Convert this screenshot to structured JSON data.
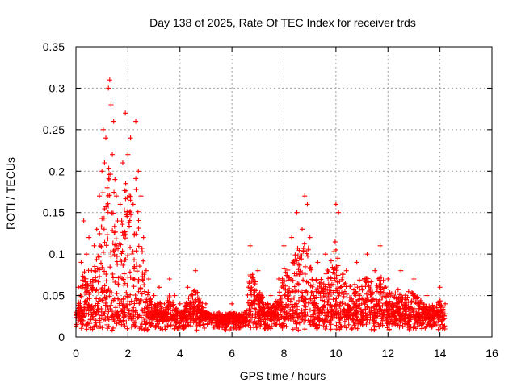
{
  "chart_data": {
    "type": "scatter",
    "title": "Day 138 of 2025, Rate Of TEC Index for receiver trds",
    "xlabel": "GPS time / hours",
    "ylabel": "ROTI / TECUs",
    "xlim": [
      0,
      16
    ],
    "ylim": [
      0,
      0.35
    ],
    "xticks": [
      0,
      2,
      4,
      6,
      8,
      10,
      12,
      14,
      16
    ],
    "yticks": [
      0,
      0.05,
      0.1,
      0.15,
      0.2,
      0.25,
      0.3,
      0.35
    ],
    "ytick_labels": [
      "0",
      "0.05",
      "0.1",
      "0.15",
      "0.2",
      "0.25",
      "0.3",
      "0.35"
    ],
    "grid": true,
    "marker": "+",
    "series": [
      {
        "name": "ROTI",
        "color": "#ff0000",
        "x": [
          0.0,
          0.1,
          0.2,
          0.3,
          0.4,
          0.5,
          0.6,
          0.7,
          0.8,
          0.9,
          1.0,
          1.05,
          1.1,
          1.15,
          1.2,
          1.25,
          1.3,
          1.35,
          1.4,
          1.45,
          1.5,
          1.55,
          1.6,
          1.7,
          1.8,
          1.9,
          2.0,
          2.1,
          2.2,
          2.3,
          2.4,
          2.5,
          2.6,
          2.7,
          2.8,
          3.0,
          3.2,
          3.4,
          3.6,
          3.8,
          4.0,
          4.3,
          4.6,
          5.0,
          5.5,
          6.0,
          6.5,
          6.7,
          7.0,
          7.5,
          7.8,
          8.0,
          8.3,
          8.5,
          8.7,
          8.8,
          8.9,
          9.0,
          9.3,
          9.6,
          10.0,
          10.1,
          10.4,
          10.8,
          11.2,
          11.5,
          11.7,
          12.0,
          12.5,
          13.0,
          13.5,
          14.0,
          14.2
        ],
        "y": [
          0.03,
          0.06,
          0.09,
          0.14,
          0.1,
          0.12,
          0.08,
          0.11,
          0.13,
          0.17,
          0.2,
          0.25,
          0.21,
          0.24,
          0.18,
          0.3,
          0.31,
          0.28,
          0.22,
          0.26,
          0.19,
          0.17,
          0.14,
          0.16,
          0.21,
          0.27,
          0.22,
          0.24,
          0.16,
          0.26,
          0.2,
          0.17,
          0.12,
          0.08,
          0.07,
          0.05,
          0.06,
          0.04,
          0.07,
          0.05,
          0.04,
          0.06,
          0.08,
          0.04,
          0.03,
          0.04,
          0.03,
          0.11,
          0.08,
          0.05,
          0.07,
          0.11,
          0.12,
          0.15,
          0.13,
          0.17,
          0.16,
          0.12,
          0.09,
          0.1,
          0.16,
          0.15,
          0.08,
          0.09,
          0.1,
          0.08,
          0.11,
          0.07,
          0.08,
          0.07,
          0.05,
          0.06,
          0.04
        ]
      }
    ]
  }
}
